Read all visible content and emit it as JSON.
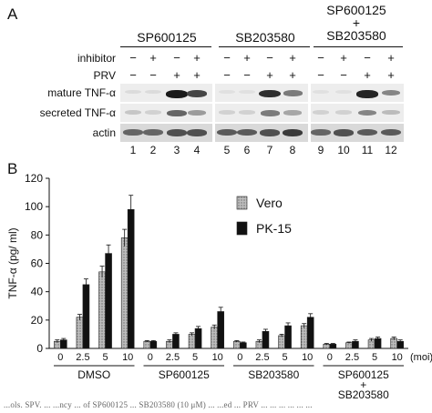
{
  "panelA": {
    "letter": "A",
    "groups": [
      {
        "label_lines": [
          "SP600125"
        ]
      },
      {
        "label_lines": [
          "SB203580"
        ]
      },
      {
        "label_lines": [
          "SP600125",
          "+",
          "SB203580"
        ]
      }
    ],
    "inhibitor_label": "inhibitor",
    "prv_label": "PRV",
    "inhibitor_signs": [
      "−",
      "+",
      "−",
      "+",
      "−",
      "+",
      "−",
      "+",
      "−",
      "+",
      "−",
      "+"
    ],
    "prv_signs": [
      "−",
      "−",
      "+",
      "+",
      "−",
      "−",
      "+",
      "+",
      "−",
      "−",
      "+",
      "+"
    ],
    "blot_rows": [
      {
        "label": "mature TNF-α",
        "intensity": [
          0.05,
          0.05,
          0.95,
          0.75,
          0.03,
          0.03,
          0.85,
          0.5,
          0.03,
          0.03,
          0.9,
          0.45
        ]
      },
      {
        "label": "secreted TNF-α",
        "intensity": [
          0.15,
          0.1,
          0.6,
          0.35,
          0.1,
          0.1,
          0.5,
          0.3,
          0.1,
          0.1,
          0.45,
          0.2
        ]
      },
      {
        "label": "actin",
        "intensity": [
          0.6,
          0.6,
          0.7,
          0.7,
          0.65,
          0.65,
          0.7,
          0.8,
          0.6,
          0.7,
          0.65,
          0.65
        ]
      }
    ],
    "lane_numbers": [
      "1",
      "2",
      "3",
      "4",
      "5",
      "6",
      "7",
      "8",
      "9",
      "10",
      "11",
      "12"
    ]
  },
  "panelB": {
    "letter": "B"
  },
  "chart_data": {
    "type": "bar",
    "title": "",
    "ylabel": "TNF-α (pg/ ml)",
    "xlabel": "(moi)",
    "ylim": [
      0,
      120
    ],
    "yticks": [
      0,
      20,
      40,
      60,
      80,
      100,
      120
    ],
    "grid": false,
    "legend_position": "top-right",
    "groups": [
      {
        "label_lines": [
          "DMSO"
        ]
      },
      {
        "label_lines": [
          "SP600125"
        ]
      },
      {
        "label_lines": [
          "SB203580"
        ]
      },
      {
        "label_lines": [
          "SP600125",
          "+",
          "SB203580"
        ]
      }
    ],
    "categories": [
      "0",
      "2.5",
      "5",
      "10",
      "0",
      "2.5",
      "5",
      "10",
      "0",
      "2.5",
      "5",
      "10",
      "0",
      "2.5",
      "5",
      "10"
    ],
    "series": [
      {
        "name": "Vero",
        "color": "#a8a8a8",
        "pattern": "dotted-gray",
        "values": [
          5,
          22,
          54,
          78,
          5,
          5,
          10,
          15,
          5,
          5,
          9,
          16,
          3,
          4,
          6,
          7
        ],
        "errors": [
          1,
          2,
          4,
          6,
          0.5,
          1,
          1,
          1.5,
          0.5,
          1,
          1,
          1.5,
          0.5,
          0.5,
          1,
          1
        ]
      },
      {
        "name": "PK-15",
        "color": "#111111",
        "pattern": "solid-black",
        "values": [
          6,
          45,
          67,
          98,
          5,
          10,
          14,
          26,
          4,
          12,
          16,
          22,
          3,
          5,
          7,
          5
        ],
        "errors": [
          1,
          4,
          6,
          10,
          0.5,
          1,
          1.5,
          3,
          0.5,
          1.5,
          2,
          2.5,
          0.5,
          1,
          1,
          1
        ]
      }
    ]
  },
  "caption_fragment": "...ols. SPV. ... ...ncy ... of SP600125 ... SB203580 (10 μM) ... ...ed ... PRV ... ... ... ... ... ..."
}
